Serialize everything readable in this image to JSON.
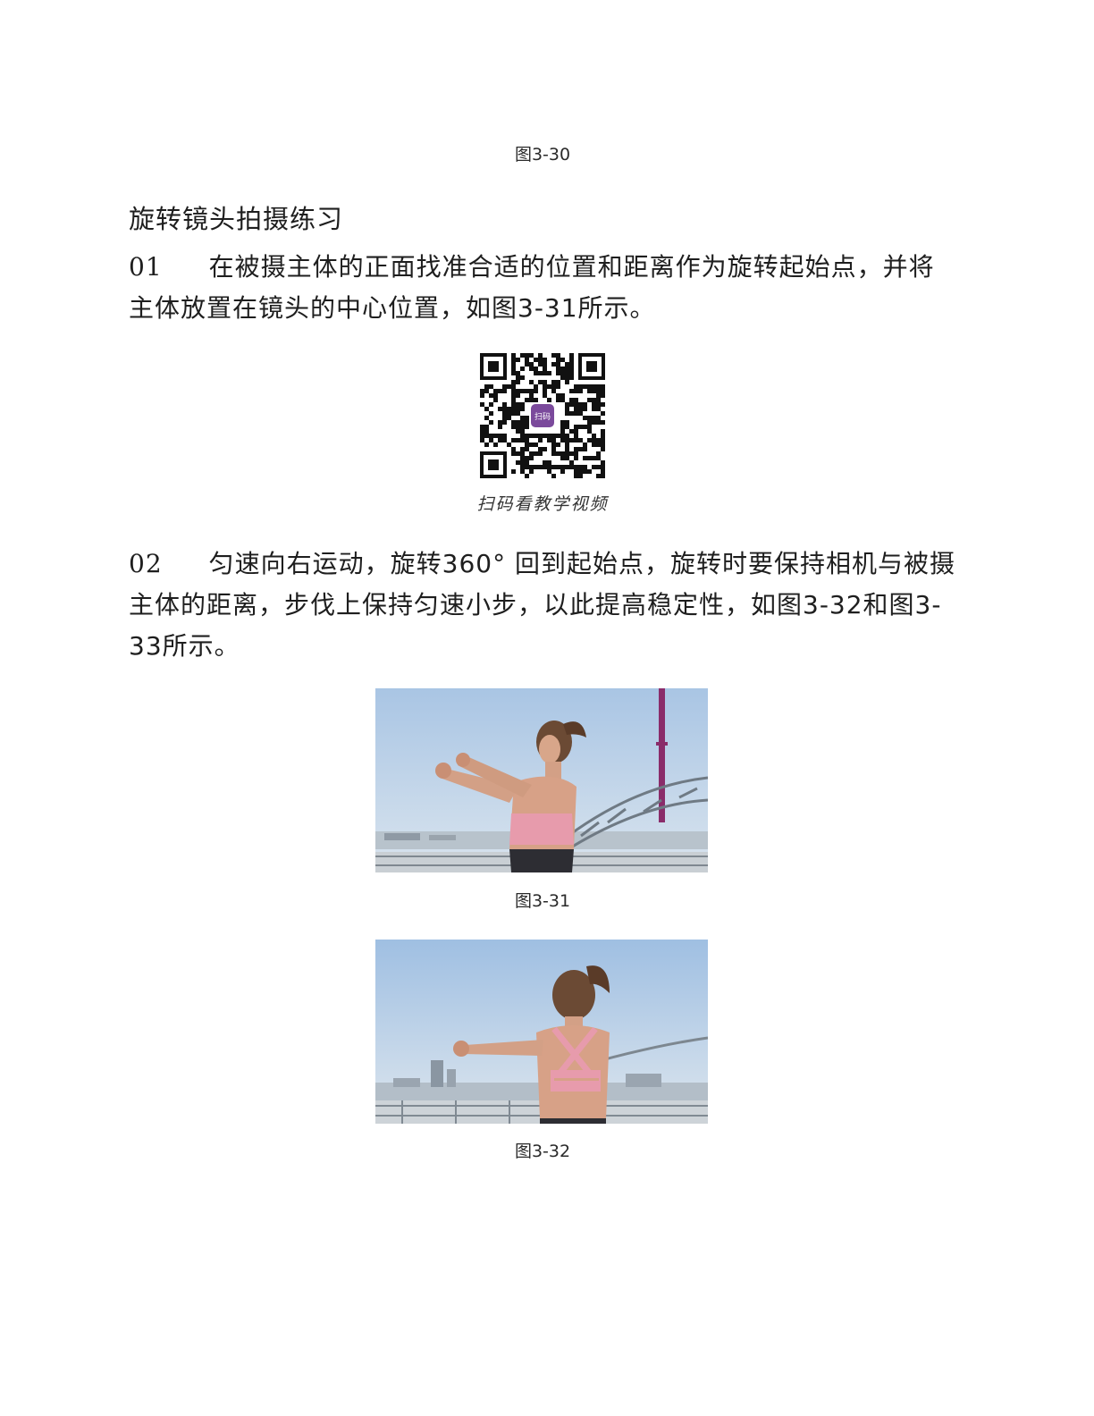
{
  "captions": {
    "fig_3_30": "图3-30",
    "fig_3_31": "图3-31",
    "fig_3_32": "图3-32"
  },
  "section_title": "旋转镜头拍摄练习",
  "steps": [
    {
      "number": "01",
      "text_line1": "在被摄主体的正面找准合适的位置和距离作为旋转起始点，并将",
      "text_rest": "主体放置在镜头的中心位置，如图3-31所示。"
    },
    {
      "number": "02",
      "text_line1": "匀速向右运动，旋转360° 回到起始点，旋转时要保持相机与被摄",
      "text_rest": "主体的距离，步伐上保持匀速小步，以此提高稳定性，如图3-32和图3-33所示。"
    }
  ],
  "qr": {
    "caption": "扫码看教学视频",
    "logo_text": "扫码",
    "logo_color": "#7b4a9c"
  }
}
